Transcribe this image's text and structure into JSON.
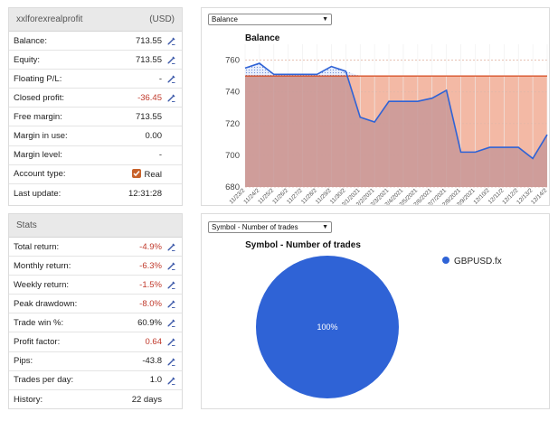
{
  "account": {
    "name": "xxlforexrealprofit",
    "currency": "(USD)",
    "rows": [
      {
        "label": "Balance:",
        "value": "713.55",
        "negative": false,
        "editable": true
      },
      {
        "label": "Equity:",
        "value": "713.55",
        "negative": false,
        "editable": true
      },
      {
        "label": "Floating P/L:",
        "value": "-",
        "negative": false,
        "editable": true
      },
      {
        "label": "Closed profit:",
        "value": "-36.45",
        "negative": true,
        "editable": true
      },
      {
        "label": "Free margin:",
        "value": "713.55",
        "negative": false,
        "editable": false
      },
      {
        "label": "Margin in use:",
        "value": "0.00",
        "negative": false,
        "editable": false
      },
      {
        "label": "Margin level:",
        "value": "-",
        "negative": false,
        "editable": false
      },
      {
        "label": "Account type:",
        "value": "Real",
        "negative": false,
        "editable": false,
        "checkbox": true
      },
      {
        "label": "Last update:",
        "value": "12:31:28",
        "negative": false,
        "editable": false
      }
    ]
  },
  "stats": {
    "title": "Stats",
    "rows": [
      {
        "label": "Total return:",
        "value": "-4.9%",
        "negative": true,
        "editable": true
      },
      {
        "label": "Monthly return:",
        "value": "-6.3%",
        "negative": true,
        "editable": true
      },
      {
        "label": "Weekly return:",
        "value": "-1.5%",
        "negative": true,
        "editable": true
      },
      {
        "label": "Peak drawdown:",
        "value": "-8.0%",
        "negative": true,
        "editable": true
      },
      {
        "label": "Trade win %:",
        "value": "60.9%",
        "negative": false,
        "editable": true
      },
      {
        "label": "Profit factor:",
        "value": "0.64",
        "negative": true,
        "editable": true
      },
      {
        "label": "Pips:",
        "value": "-43.8",
        "negative": false,
        "editable": true
      },
      {
        "label": "Trades per day:",
        "value": "1.0",
        "negative": false,
        "editable": true
      },
      {
        "label": "History:",
        "value": "22 days",
        "negative": false,
        "editable": false
      }
    ]
  },
  "balance_select": {
    "selected": "Balance"
  },
  "pie_select": {
    "selected": "Symbol - Number of trades"
  },
  "colors": {
    "accent": "#2f63d6",
    "negative": "#c0392b",
    "checkbox": "#c8622a",
    "drawdown_fill": "#c89898",
    "loss_zone": "#f3b9a5",
    "baseline": "#d64a1f"
  },
  "chart_data": [
    {
      "type": "line",
      "title": "Balance",
      "x": [
        "11/23/2",
        "11/24/2",
        "11/25/2",
        "11/26/2",
        "11/27/2",
        "11/28/2",
        "11/29/2",
        "11/30/2",
        "12/1/2021",
        "12/2/2021",
        "12/3/2021",
        "12/4/2021",
        "12/5/2021",
        "12/6/2021",
        "12/7/2021",
        "12/8/2021",
        "12/9/2021",
        "12/10/2",
        "12/11/2",
        "12/12/2",
        "12/13/2",
        "12/14/2"
      ],
      "series": [
        {
          "values": [
            755,
            758,
            751,
            751,
            751,
            751,
            756,
            753,
            724,
            721,
            734,
            734,
            734,
            736,
            741,
            702,
            702,
            705,
            705,
            705,
            698,
            713
          ]
        }
      ],
      "baseline": 750,
      "ylim": [
        680,
        770
      ],
      "yticks": [
        680,
        700,
        720,
        740,
        760
      ],
      "grid": true,
      "legend": "none"
    },
    {
      "type": "pie",
      "title": "Symbol - Number of trades",
      "categories": [
        "GBPUSD.fx"
      ],
      "values": [
        100
      ],
      "labels": [
        "100%"
      ],
      "legend": "top-right"
    }
  ]
}
